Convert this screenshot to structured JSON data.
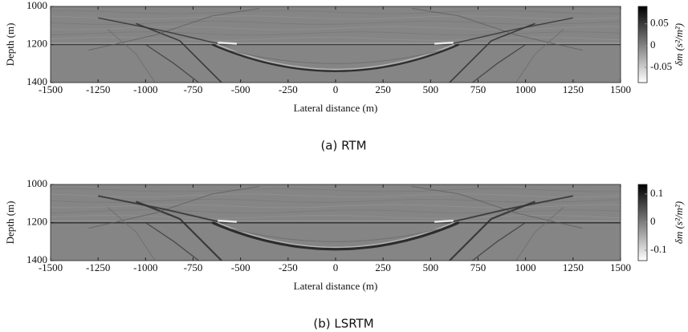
{
  "chart_data": [
    {
      "type": "image",
      "caption": "(a) RTM",
      "xlabel": "Lateral distance (m)",
      "ylabel": "Depth (m)",
      "xlim": [
        -1500,
        1500
      ],
      "xticks": [
        -1500,
        -1250,
        -1000,
        -750,
        -500,
        -250,
        0,
        250,
        500,
        750,
        1000,
        1250,
        1500
      ],
      "ylim": [
        1000,
        1400
      ],
      "yticks": [
        1000,
        1200,
        1400
      ],
      "colorbar": {
        "label": "δm (s²/m²)",
        "clim": [
          -0.085,
          0.09
        ],
        "ticks": [
          -0.05,
          0,
          0.05
        ]
      }
    },
    {
      "type": "image",
      "caption": "(b) LSRTM",
      "xlabel": "Lateral distance (m)",
      "ylabel": "Depth (m)",
      "xlim": [
        -1500,
        1500
      ],
      "xticks": [
        -1500,
        -1250,
        -1000,
        -750,
        -500,
        -250,
        0,
        250,
        500,
        750,
        1000,
        1250,
        1500
      ],
      "ylim": [
        1000,
        1400
      ],
      "yticks": [
        1000,
        1200,
        1400
      ],
      "colorbar": {
        "label": "δm (s²/m²)",
        "clim": [
          -0.137,
          0.134
        ],
        "ticks": [
          -0.1,
          0,
          0.1
        ]
      }
    }
  ]
}
